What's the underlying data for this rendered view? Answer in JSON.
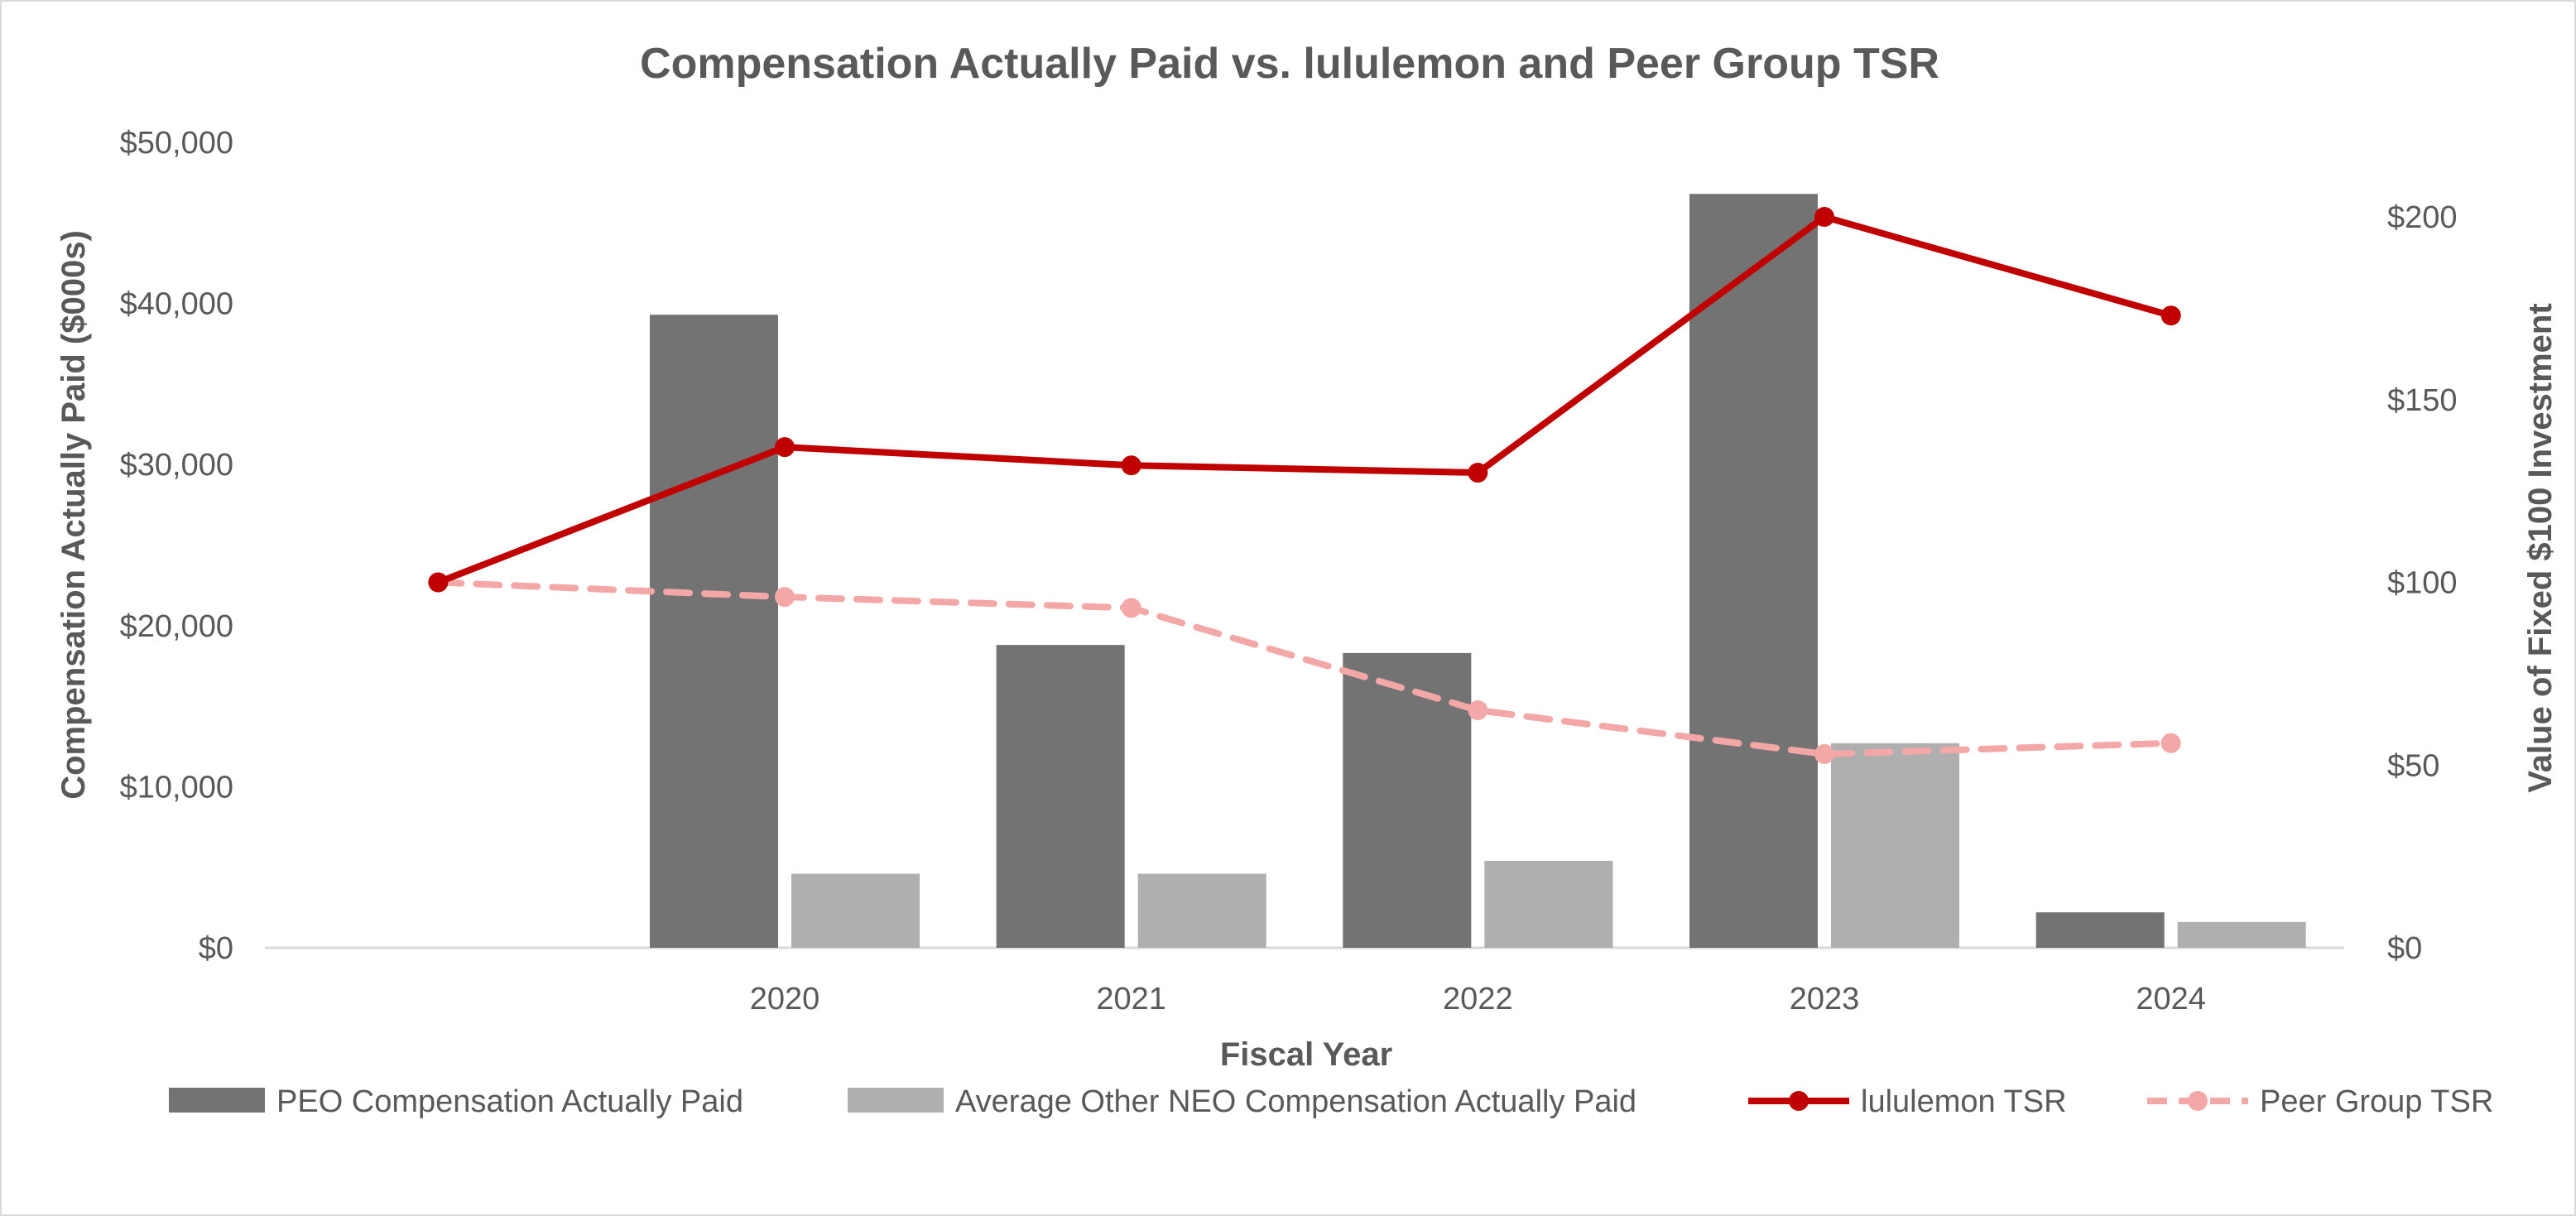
{
  "chart_data": {
    "type": "bar",
    "title": "Compensation Actually Paid vs. lululemon and Peer Group TSR",
    "xlabel": "Fiscal Year",
    "ylabel": "Compensation Actually Paid ($000s)",
    "y2label": "Value of Fixed $100 Investment",
    "categories": [
      "",
      "2020",
      "2021",
      "2022",
      "2023",
      "2024"
    ],
    "ylim": [
      0,
      50000
    ],
    "y2lim": [
      0,
      220
    ],
    "y_ticks": [
      0,
      10000,
      20000,
      30000,
      40000,
      50000
    ],
    "y_tick_labels": [
      "$0",
      "$10,000",
      "$20,000",
      "$30,000",
      "$40,000",
      "$50,000"
    ],
    "y2_ticks": [
      0,
      50,
      100,
      150,
      200
    ],
    "y2_tick_labels": [
      "$0",
      "$50",
      "$100",
      "$150",
      "$200"
    ],
    "legend_position": "bottom",
    "series": [
      {
        "name": "PEO Compensation Actually Paid",
        "type": "bar",
        "axis": "left",
        "color": "#737373",
        "values": [
          null,
          39300,
          18800,
          18300,
          46800,
          2200
        ]
      },
      {
        "name": "Average Other NEO Compensation Actually Paid",
        "type": "bar",
        "axis": "left",
        "color": "#afafaf",
        "values": [
          null,
          4600,
          4600,
          5400,
          12700,
          1600
        ]
      },
      {
        "name": "lululemon TSR",
        "type": "line",
        "axis": "right",
        "color": "#c00000",
        "dash": false,
        "values": [
          100,
          137,
          132,
          130,
          200,
          173
        ]
      },
      {
        "name": "Peer Group TSR",
        "type": "line",
        "axis": "right",
        "color": "#f4a7a7",
        "dash": true,
        "values": [
          100,
          96,
          93,
          65,
          53,
          56
        ]
      }
    ]
  }
}
